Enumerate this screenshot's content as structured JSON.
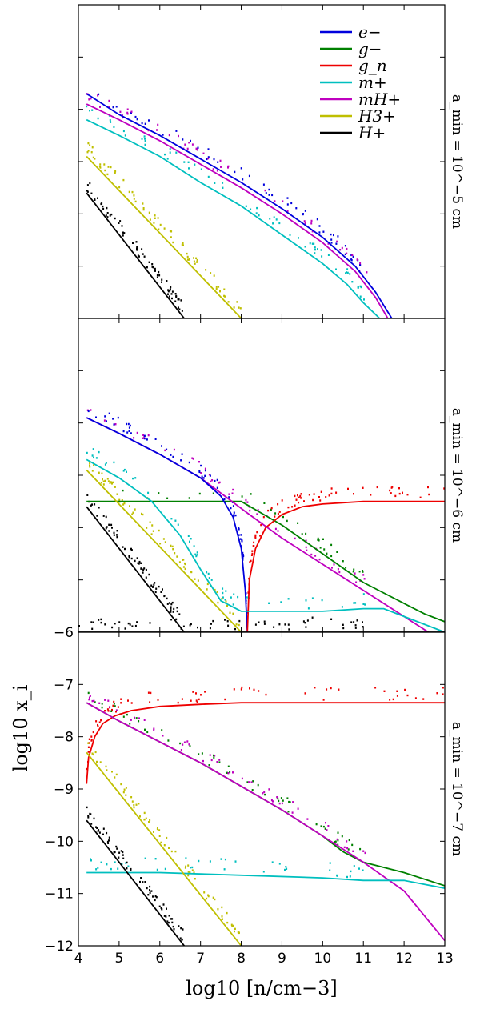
{
  "chart_data": {
    "type": "line",
    "x_axis": {
      "label": "log10 [n/cm−3]",
      "range": [
        4,
        13
      ],
      "ticks": [
        4,
        5,
        6,
        7,
        8,
        9,
        10,
        11,
        12,
        13
      ],
      "tick_labels": [
        "4",
        "5",
        "6",
        "7",
        "8",
        "9",
        "10",
        "11",
        "12",
        "13"
      ]
    },
    "y_axis": {
      "label": "log10 x_i"
    },
    "legend": {
      "placement": "top-right",
      "entries": [
        {
          "key": "e",
          "label": "e−",
          "color": "#0000dd"
        },
        {
          "key": "gm",
          "label": "g−",
          "color": "#008000"
        },
        {
          "key": "gn",
          "label": "g_n",
          "color": "#ee0000"
        },
        {
          "key": "mp",
          "label": "m+",
          "color": "#00bfbf"
        },
        {
          "key": "mh",
          "label": "mH+",
          "color": "#bf00bf"
        },
        {
          "key": "h3",
          "label": "H3+",
          "color": "#bfbf00"
        },
        {
          "key": "hp",
          "label": "H+",
          "color": "#000000"
        }
      ]
    },
    "panels": [
      {
        "side_label": "a_min = 10^−5 cm",
        "ylim": [
          -12,
          -6
        ],
        "y_ticks": [
          -7,
          -8,
          -9,
          -10,
          -11
        ],
        "y_tick_labels": [],
        "series": [
          {
            "key": "e",
            "x": [
              4.2,
              5,
              6,
              7,
              8,
              9,
              10,
              10.8,
              11.3,
              11.7
            ],
            "y": [
              -7.7,
              -8.1,
              -8.5,
              -8.95,
              -9.4,
              -9.9,
              -10.45,
              -11.0,
              -11.5,
              -12
            ]
          },
          {
            "key": "mh",
            "x": [
              4.2,
              5,
              6,
              7,
              8,
              9,
              10,
              10.8,
              11.3,
              11.6
            ],
            "y": [
              -7.9,
              -8.2,
              -8.6,
              -9.05,
              -9.5,
              -10.0,
              -10.55,
              -11.1,
              -11.6,
              -12
            ]
          },
          {
            "key": "mp",
            "x": [
              4.2,
              5,
              6,
              7,
              8,
              9,
              10,
              10.6,
              11.0,
              11.4
            ],
            "y": [
              -8.2,
              -8.5,
              -8.9,
              -9.4,
              -9.85,
              -10.4,
              -10.95,
              -11.35,
              -11.7,
              -12
            ]
          },
          {
            "key": "h3",
            "x": [
              4.2,
              8.0
            ],
            "y": [
              -8.9,
              -12
            ]
          },
          {
            "key": "hp",
            "x": [
              4.2,
              6.6
            ],
            "y": [
              -9.6,
              -12
            ]
          }
        ]
      },
      {
        "side_label": "a_min = 10^−6 cm",
        "ylim": [
          -12,
          -6
        ],
        "y_ticks": [
          -7,
          -8,
          -9,
          -10,
          -11
        ],
        "y_tick_labels": [],
        "series": [
          {
            "key": "gm",
            "x": [
              4.2,
              8,
              9,
              10,
              11,
              11.5,
              12,
              12.5,
              13
            ],
            "y": [
              -9.5,
              -9.5,
              -9.95,
              -10.5,
              -11.05,
              -11.25,
              -11.45,
              -11.65,
              -11.8
            ]
          },
          {
            "key": "mh",
            "x": [
              4.2,
              5,
              6,
              7,
              7.6,
              8.2,
              9,
              10,
              11,
              12,
              12.6
            ],
            "y": [
              -7.9,
              -8.2,
              -8.6,
              -9.05,
              -9.4,
              -9.75,
              -10.2,
              -10.7,
              -11.2,
              -11.7,
              -12
            ]
          },
          {
            "key": "e",
            "x": [
              4.2,
              5,
              6,
              7,
              7.5,
              7.8,
              8.0,
              8.1,
              8.15
            ],
            "y": [
              -7.9,
              -8.2,
              -8.6,
              -9.05,
              -9.4,
              -9.8,
              -10.4,
              -11.2,
              -12
            ]
          },
          {
            "key": "gn",
            "x": [
              8.15,
              8.2,
              8.35,
              8.6,
              9,
              9.5,
              10,
              11,
              12,
              13
            ],
            "y": [
              -12,
              -11.0,
              -10.4,
              -10.0,
              -9.75,
              -9.6,
              -9.55,
              -9.5,
              -9.5,
              -9.5
            ]
          },
          {
            "key": "mp",
            "x": [
              4.2,
              5,
              5.8,
              6.5,
              7,
              7.5,
              8,
              9,
              10,
              11,
              11.5,
              12,
              13
            ],
            "y": [
              -8.7,
              -9.05,
              -9.5,
              -10.15,
              -10.8,
              -11.4,
              -11.6,
              -11.6,
              -11.6,
              -11.55,
              -11.55,
              -11.7,
              -12
            ]
          },
          {
            "key": "h3",
            "x": [
              4.2,
              8.0
            ],
            "y": [
              -8.9,
              -12
            ]
          },
          {
            "key": "hp",
            "x": [
              4.2,
              6.6
            ],
            "y": [
              -9.6,
              -12
            ]
          },
          {
            "key": "hp",
            "x": [
              4,
              13
            ],
            "y": [
              -12,
              -12
            ]
          }
        ]
      },
      {
        "side_label": "a_min = 10^−7 cm",
        "ylim": [
          -12,
          -6
        ],
        "y_ticks": [
          -6,
          -7,
          -8,
          -9,
          -10,
          -11,
          -12
        ],
        "y_tick_labels": [
          "−6",
          "−7",
          "−8",
          "−9",
          "−10",
          "−11",
          "−12"
        ],
        "series": [
          {
            "key": "gn",
            "x": [
              4.2,
              4.25,
              4.4,
              4.6,
              4.9,
              5.3,
              6,
              7,
              8,
              9,
              10,
              11,
              12,
              13
            ],
            "y": [
              -8.9,
              -8.4,
              -8.0,
              -7.75,
              -7.6,
              -7.5,
              -7.42,
              -7.38,
              -7.35,
              -7.35,
              -7.35,
              -7.35,
              -7.35,
              -7.35
            ]
          },
          {
            "key": "gm",
            "x": [
              4.2,
              5,
              6,
              7,
              8,
              9,
              10,
              10.5,
              11,
              12,
              13
            ],
            "y": [
              -7.35,
              -7.7,
              -8.1,
              -8.5,
              -8.95,
              -9.4,
              -9.9,
              -10.2,
              -10.4,
              -10.6,
              -10.85
            ]
          },
          {
            "key": "mh",
            "x": [
              4.2,
              5,
              6,
              7,
              8,
              9,
              10,
              11,
              12,
              13
            ],
            "y": [
              -7.35,
              -7.7,
              -8.1,
              -8.5,
              -8.95,
              -9.4,
              -9.9,
              -10.4,
              -10.95,
              -11.9
            ]
          },
          {
            "key": "mp",
            "x": [
              4.2,
              6,
              8,
              10,
              11,
              12,
              13
            ],
            "y": [
              -10.6,
              -10.6,
              -10.65,
              -10.7,
              -10.75,
              -10.75,
              -10.9
            ]
          },
          {
            "key": "h3",
            "x": [
              4.2,
              8.0
            ],
            "y": [
              -8.3,
              -12
            ]
          },
          {
            "key": "hp",
            "x": [
              4.2,
              6.6
            ],
            "y": [
              -9.6,
              -12
            ]
          }
        ]
      }
    ]
  }
}
